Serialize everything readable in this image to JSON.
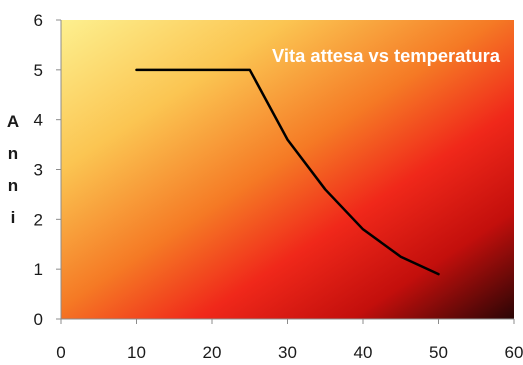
{
  "chart_data": {
    "type": "line",
    "title": "Vita attesa vs temperatura",
    "xlabel": "",
    "ylabel": "Anni",
    "xlim": [
      0,
      60
    ],
    "ylim": [
      0,
      6
    ],
    "x_ticks": [
      "0",
      "10",
      "20",
      "30",
      "40",
      "50",
      "60"
    ],
    "y_ticks": [
      "0",
      "1",
      "2",
      "3",
      "4",
      "5",
      "6"
    ],
    "grid": false,
    "series": [
      {
        "x": [
          10,
          25,
          30,
          35,
          40,
          45,
          50
        ],
        "y": [
          5,
          5,
          3.6,
          2.6,
          1.8,
          1.25,
          0.9
        ]
      }
    ],
    "colors": {
      "line": "#000000",
      "gradient_light": "#fde98a",
      "gradient_mid": "#f5a623",
      "gradient_red": "#ef1f10",
      "gradient_dark": "#2e0505",
      "title": "#ffffff"
    }
  }
}
